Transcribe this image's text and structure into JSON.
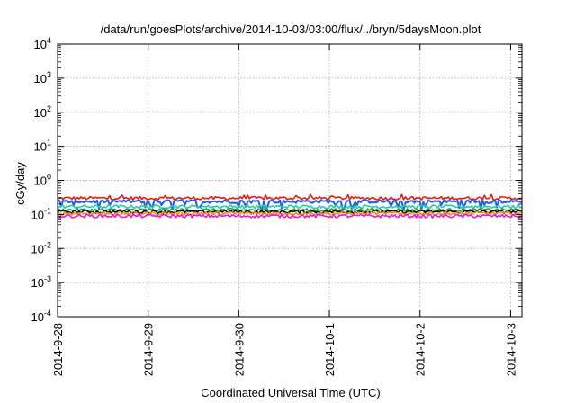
{
  "chart_data": {
    "type": "line",
    "title": "/data/run/goesPlots/archive/2014-10-03/03:00/flux/../bryn/5daysMoon.plot",
    "xlabel": "Coordinated Universal Time (UTC)",
    "ylabel": "cGy/day",
    "yscale": "log",
    "ylim": [
      0.0001,
      10000
    ],
    "xlim": [
      "2014-09-28T00:00",
      "2014-10-03T03:00"
    ],
    "grid": true,
    "y_ticks": [
      {
        "base": "10",
        "exp": "-4"
      },
      {
        "base": "10",
        "exp": "-3"
      },
      {
        "base": "10",
        "exp": "-2"
      },
      {
        "base": "10",
        "exp": "-1"
      },
      {
        "base": "10",
        "exp": "0"
      },
      {
        "base": "10",
        "exp": "1"
      },
      {
        "base": "10",
        "exp": "2"
      },
      {
        "base": "10",
        "exp": "3"
      },
      {
        "base": "10",
        "exp": "4"
      }
    ],
    "x_ticks": [
      "2014-9-28",
      "2014-9-29",
      "2014-9-30",
      "2014-10-1",
      "2014-10-2",
      "2014-10-3"
    ],
    "series": [
      {
        "color": "#e41a1c",
        "level": 0.3
      },
      {
        "color": "#1f5fe6",
        "level": 0.24
      },
      {
        "color": "#2ec7a7",
        "level": 0.17
      },
      {
        "color": "#1fa84a",
        "level": 0.135
      },
      {
        "color": "#000000",
        "level": 0.12
      },
      {
        "color": "#f08a1a",
        "level": 0.108
      },
      {
        "color": "#e81ad2",
        "level": 0.09
      }
    ]
  }
}
